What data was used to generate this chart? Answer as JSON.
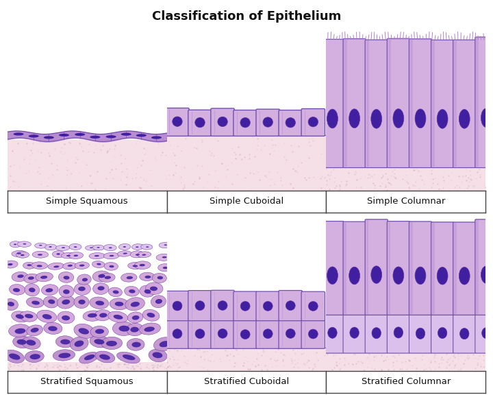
{
  "title": "Classification of Epithelium",
  "title_fontsize": 13,
  "title_fontweight": "bold",
  "cells": [
    {
      "row": 0,
      "col": 0,
      "label": "Simple Squamous",
      "type": "simple_squamous"
    },
    {
      "row": 0,
      "col": 1,
      "label": "Simple Cuboidal",
      "type": "simple_cuboidal"
    },
    {
      "row": 0,
      "col": 2,
      "label": "Simple Columnar",
      "type": "simple_columnar"
    },
    {
      "row": 1,
      "col": 0,
      "label": "Stratified Squamous",
      "type": "stratified_squamous"
    },
    {
      "row": 1,
      "col": 1,
      "label": "Stratified Cuboidal",
      "type": "stratified_cuboidal"
    },
    {
      "row": 1,
      "col": 2,
      "label": "Stratified Columnar",
      "type": "stratified_columnar"
    }
  ],
  "bg_color": "#ffffff",
  "border_color": "#444444",
  "label_fontsize": 9.5,
  "label_color": "#111111",
  "purple_light": "#d4b0e0",
  "purple_lighter": "#e8d0f0",
  "purple_mid": "#b080cc",
  "purple_dark": "#6030a0",
  "purple_nucleus": "#4020a0",
  "purple_cell": "#c8a0d8",
  "pink_base": "#f0d8e0",
  "pink_base2": "#f5e0e8",
  "cell_border": "#7050b0"
}
